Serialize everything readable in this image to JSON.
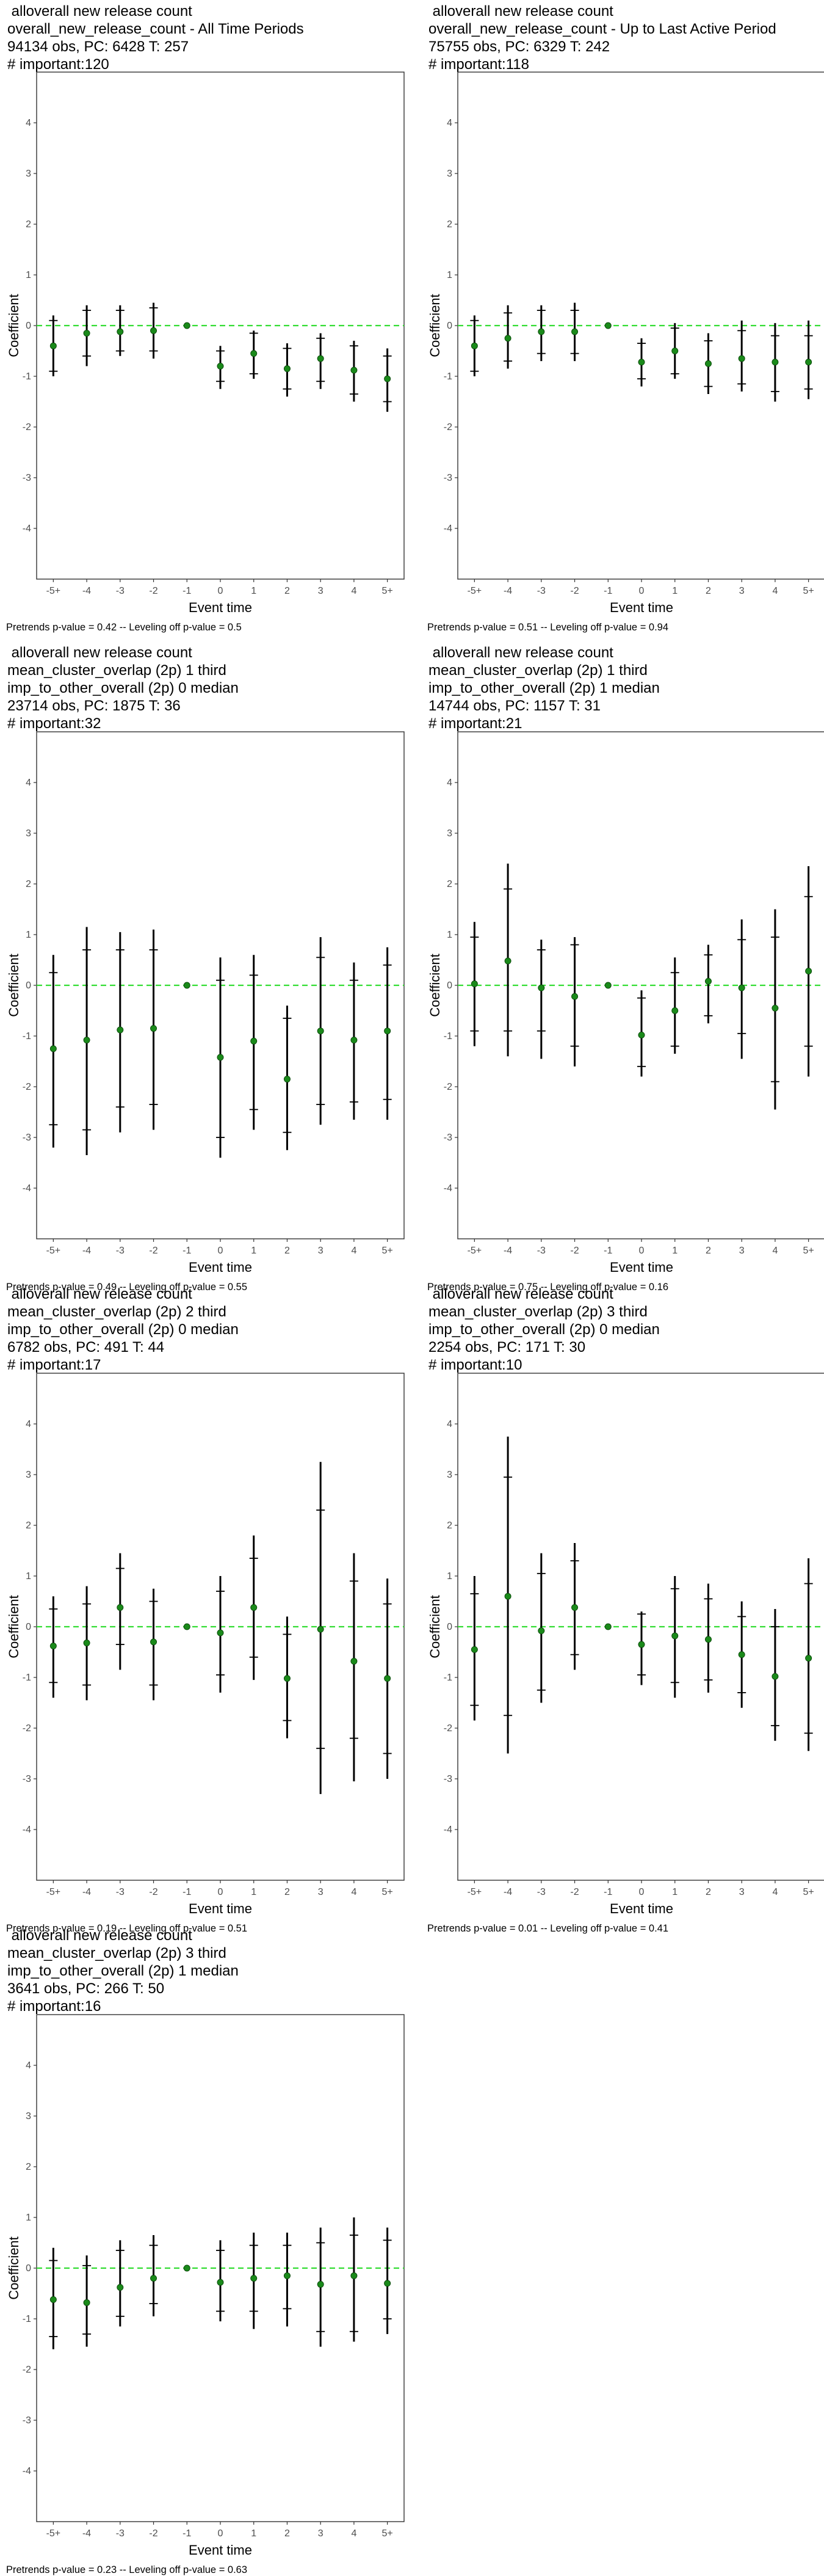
{
  "axes": {
    "xlabel": "Event time",
    "ylabel": "Coefficient",
    "x_ticks": [
      "-5+",
      "-4",
      "-3",
      "-2",
      "-1",
      "0",
      "1",
      "2",
      "3",
      "4",
      "5+"
    ],
    "y_ticks": [
      "-4",
      "-3",
      "-2",
      "-1",
      "0",
      "1",
      "2",
      "3",
      "4"
    ]
  },
  "colors": {
    "zero_line": "#33dd33",
    "point": "#1a8a1a",
    "interval": "#000000"
  },
  "chart_data": [
    {
      "type": "scatter",
      "title_lines": [
        " alloverall new release count",
        "overall_new_release_count - All Time Periods",
        "94134 obs, PC: 6428 T: 257",
        "# important:120"
      ],
      "note": "Pretrends p-value = 0.42 -- Leveling off p-value = 0.5",
      "ylim": [
        -5,
        5
      ],
      "x": [
        "-5+",
        "-4",
        "-3",
        "-2",
        "-1",
        "0",
        "1",
        "2",
        "3",
        "4",
        "5+"
      ],
      "y": [
        -0.4,
        -0.15,
        -0.12,
        -0.1,
        0,
        -0.8,
        -0.55,
        -0.85,
        -0.65,
        -0.88,
        -1.05
      ],
      "ci_inner": [
        [
          -0.9,
          0.1
        ],
        [
          -0.6,
          0.3
        ],
        [
          -0.5,
          0.3
        ],
        [
          -0.5,
          0.35
        ],
        [
          0,
          0
        ],
        [
          -1.1,
          -0.5
        ],
        [
          -0.95,
          -0.15
        ],
        [
          -1.25,
          -0.45
        ],
        [
          -1.1,
          -0.25
        ],
        [
          -1.35,
          -0.4
        ],
        [
          -1.5,
          -0.6
        ]
      ],
      "ci_outer": [
        [
          -1.0,
          0.2
        ],
        [
          -0.8,
          0.4
        ],
        [
          -0.6,
          0.4
        ],
        [
          -0.65,
          0.45
        ],
        [
          0,
          0
        ],
        [
          -1.25,
          -0.4
        ],
        [
          -1.05,
          -0.1
        ],
        [
          -1.4,
          -0.35
        ],
        [
          -1.25,
          -0.15
        ],
        [
          -1.5,
          -0.3
        ],
        [
          -1.7,
          -0.45
        ]
      ]
    },
    {
      "type": "scatter",
      "title_lines": [
        " alloverall new release count",
        "overall_new_release_count - Up to Last Active Period",
        "75755 obs, PC: 6329 T: 242",
        "# important:118"
      ],
      "note": "Pretrends p-value = 0.51 -- Leveling off p-value = 0.94",
      "ylim": [
        -5,
        5
      ],
      "x": [
        "-5+",
        "-4",
        "-3",
        "-2",
        "-1",
        "0",
        "1",
        "2",
        "3",
        "4",
        "5+"
      ],
      "y": [
        -0.4,
        -0.25,
        -0.12,
        -0.12,
        0,
        -0.72,
        -0.5,
        -0.75,
        -0.65,
        -0.72,
        -0.72
      ],
      "ci_inner": [
        [
          -0.9,
          0.1
        ],
        [
          -0.7,
          0.25
        ],
        [
          -0.55,
          0.3
        ],
        [
          -0.55,
          0.3
        ],
        [
          0,
          0
        ],
        [
          -1.05,
          -0.35
        ],
        [
          -0.95,
          -0.05
        ],
        [
          -1.2,
          -0.3
        ],
        [
          -1.15,
          -0.1
        ],
        [
          -1.3,
          -0.2
        ],
        [
          -1.25,
          -0.2
        ]
      ],
      "ci_outer": [
        [
          -1.0,
          0.2
        ],
        [
          -0.85,
          0.4
        ],
        [
          -0.7,
          0.4
        ],
        [
          -0.7,
          0.45
        ],
        [
          0,
          0
        ],
        [
          -1.2,
          -0.25
        ],
        [
          -1.05,
          0.05
        ],
        [
          -1.35,
          -0.15
        ],
        [
          -1.3,
          0.1
        ],
        [
          -1.5,
          0.05
        ],
        [
          -1.45,
          0.1
        ]
      ]
    },
    {
      "type": "scatter",
      "title_lines": [
        " alloverall new release count",
        "mean_cluster_overlap (2p) 1 third",
        "imp_to_other_overall (2p) 0 median",
        "23714 obs, PC: 1875 T: 36",
        "# important:32"
      ],
      "note": "Pretrends p-value = 0.49 -- Leveling off p-value = 0.55",
      "ylim": [
        -5,
        5
      ],
      "x": [
        "-5+",
        "-4",
        "-3",
        "-2",
        "-1",
        "0",
        "1",
        "2",
        "3",
        "4",
        "5+"
      ],
      "y": [
        -1.25,
        -1.08,
        -0.88,
        -0.85,
        0,
        -1.42,
        -1.1,
        -1.85,
        -0.9,
        -1.08,
        -0.9
      ],
      "ci_inner": [
        [
          -2.75,
          0.25
        ],
        [
          -2.85,
          0.7
        ],
        [
          -2.4,
          0.7
        ],
        [
          -2.35,
          0.7
        ],
        [
          0,
          0
        ],
        [
          -3.0,
          0.1
        ],
        [
          -2.45,
          0.2
        ],
        [
          -2.9,
          -0.65
        ],
        [
          -2.35,
          0.55
        ],
        [
          -2.3,
          0.1
        ],
        [
          -2.25,
          0.4
        ]
      ],
      "ci_outer": [
        [
          -3.2,
          0.6
        ],
        [
          -3.35,
          1.15
        ],
        [
          -2.9,
          1.05
        ],
        [
          -2.85,
          1.1
        ],
        [
          0,
          0
        ],
        [
          -3.4,
          0.55
        ],
        [
          -2.85,
          0.6
        ],
        [
          -3.25,
          -0.4
        ],
        [
          -2.75,
          0.95
        ],
        [
          -2.65,
          0.45
        ],
        [
          -2.65,
          0.75
        ]
      ]
    },
    {
      "type": "scatter",
      "title_lines": [
        " alloverall new release count",
        "mean_cluster_overlap (2p) 1 third",
        "imp_to_other_overall (2p) 1 median",
        "14744 obs, PC: 1157 T: 31",
        "# important:21"
      ],
      "note": "Pretrends p-value = 0.75 -- Leveling off p-value = 0.16",
      "ylim": [
        -5,
        5
      ],
      "x": [
        "-5+",
        "-4",
        "-3",
        "-2",
        "-1",
        "0",
        "1",
        "2",
        "3",
        "4",
        "5+"
      ],
      "y": [
        0.03,
        0.48,
        -0.05,
        -0.22,
        0,
        -0.98,
        -0.5,
        0.08,
        -0.05,
        -0.45,
        0.28
      ],
      "ci_inner": [
        [
          -0.9,
          0.95
        ],
        [
          -0.9,
          1.9
        ],
        [
          -0.9,
          0.7
        ],
        [
          -1.2,
          0.8
        ],
        [
          0,
          0
        ],
        [
          -1.6,
          -0.25
        ],
        [
          -1.2,
          0.25
        ],
        [
          -0.6,
          0.6
        ],
        [
          -0.95,
          0.9
        ],
        [
          -1.9,
          0.95
        ],
        [
          -1.2,
          1.75
        ]
      ],
      "ci_outer": [
        [
          -1.2,
          1.25
        ],
        [
          -1.4,
          2.4
        ],
        [
          -1.45,
          0.9
        ],
        [
          -1.6,
          0.95
        ],
        [
          0,
          0
        ],
        [
          -1.8,
          -0.1
        ],
        [
          -1.35,
          0.55
        ],
        [
          -0.75,
          0.8
        ],
        [
          -1.45,
          1.3
        ],
        [
          -2.45,
          1.5
        ],
        [
          -1.8,
          2.35
        ]
      ]
    },
    {
      "type": "scatter",
      "title_lines": [
        " alloverall new release count",
        "mean_cluster_overlap (2p) 2 third",
        "imp_to_other_overall (2p) 0 median",
        "6782 obs, PC: 491 T: 44",
        "# important:17"
      ],
      "note": "Pretrends p-value = 0.19 -- Leveling off p-value = 0.51",
      "ylim": [
        -5,
        5
      ],
      "x": [
        "-5+",
        "-4",
        "-3",
        "-2",
        "-1",
        "0",
        "1",
        "2",
        "3",
        "4",
        "5+"
      ],
      "y": [
        -0.38,
        -0.32,
        0.38,
        -0.3,
        0,
        -0.12,
        0.38,
        -1.02,
        -0.05,
        -0.68,
        -1.02
      ],
      "ci_inner": [
        [
          -1.1,
          0.35
        ],
        [
          -1.15,
          0.45
        ],
        [
          -0.35,
          1.15
        ],
        [
          -1.15,
          0.5
        ],
        [
          0,
          0
        ],
        [
          -0.95,
          0.7
        ],
        [
          -0.6,
          1.35
        ],
        [
          -1.85,
          -0.15
        ],
        [
          -2.4,
          2.3
        ],
        [
          -2.2,
          0.9
        ],
        [
          -2.5,
          0.45
        ]
      ],
      "ci_outer": [
        [
          -1.4,
          0.6
        ],
        [
          -1.45,
          0.8
        ],
        [
          -0.85,
          1.45
        ],
        [
          -1.45,
          0.75
        ],
        [
          0,
          0
        ],
        [
          -1.3,
          1.0
        ],
        [
          -1.05,
          1.8
        ],
        [
          -2.2,
          0.2
        ],
        [
          -3.3,
          3.25
        ],
        [
          -3.05,
          1.45
        ],
        [
          -3.0,
          0.95
        ]
      ]
    },
    {
      "type": "scatter",
      "title_lines": [
        " alloverall new release count",
        "mean_cluster_overlap (2p) 3 third",
        "imp_to_other_overall (2p) 0 median",
        "2254 obs, PC: 171 T: 30",
        "# important:10"
      ],
      "note": "Pretrends p-value = 0.01 -- Leveling off p-value = 0.41",
      "ylim": [
        -5,
        5
      ],
      "x": [
        "-5+",
        "-4",
        "-3",
        "-2",
        "-1",
        "0",
        "1",
        "2",
        "3",
        "4",
        "5+"
      ],
      "y": [
        -0.45,
        0.6,
        -0.08,
        0.38,
        0,
        -0.35,
        -0.18,
        -0.25,
        -0.55,
        -0.98,
        -0.62
      ],
      "ci_inner": [
        [
          -1.55,
          0.65
        ],
        [
          -1.75,
          2.95
        ],
        [
          -1.25,
          1.05
        ],
        [
          -0.55,
          1.3
        ],
        [
          0,
          0
        ],
        [
          -0.95,
          0.25
        ],
        [
          -1.1,
          0.75
        ],
        [
          -1.05,
          0.55
        ],
        [
          -1.3,
          0.2
        ],
        [
          -1.95,
          0.0
        ],
        [
          -2.1,
          0.85
        ]
      ],
      "ci_outer": [
        [
          -1.85,
          1.0
        ],
        [
          -2.5,
          3.75
        ],
        [
          -1.5,
          1.45
        ],
        [
          -0.85,
          1.65
        ],
        [
          0,
          0
        ],
        [
          -1.15,
          0.3
        ],
        [
          -1.4,
          1.0
        ],
        [
          -1.3,
          0.85
        ],
        [
          -1.6,
          0.5
        ],
        [
          -2.25,
          0.35
        ],
        [
          -2.45,
          1.35
        ]
      ]
    },
    {
      "type": "scatter",
      "title_lines": [
        " alloverall new release count",
        "mean_cluster_overlap (2p) 3 third",
        "imp_to_other_overall (2p) 1 median",
        "3641 obs, PC: 266 T: 50",
        "# important:16"
      ],
      "note": "Pretrends p-value = 0.23 -- Leveling off p-value = 0.63",
      "ylim": [
        -5,
        5
      ],
      "x": [
        "-5+",
        "-4",
        "-3",
        "-2",
        "-1",
        "0",
        "1",
        "2",
        "3",
        "4",
        "5+"
      ],
      "y": [
        -0.62,
        -0.68,
        -0.38,
        -0.2,
        0,
        -0.28,
        -0.2,
        -0.15,
        -0.32,
        -0.15,
        -0.3
      ],
      "ci_inner": [
        [
          -1.35,
          0.15
        ],
        [
          -1.3,
          0.05
        ],
        [
          -0.95,
          0.35
        ],
        [
          -0.7,
          0.45
        ],
        [
          0,
          0
        ],
        [
          -0.85,
          0.35
        ],
        [
          -0.85,
          0.45
        ],
        [
          -0.8,
          0.45
        ],
        [
          -1.25,
          0.5
        ],
        [
          -1.25,
          0.65
        ],
        [
          -1.0,
          0.55
        ]
      ],
      "ci_outer": [
        [
          -1.6,
          0.4
        ],
        [
          -1.55,
          0.25
        ],
        [
          -1.15,
          0.55
        ],
        [
          -0.95,
          0.65
        ],
        [
          0,
          0
        ],
        [
          -1.05,
          0.55
        ],
        [
          -1.2,
          0.7
        ],
        [
          -1.15,
          0.7
        ],
        [
          -1.55,
          0.8
        ],
        [
          -1.45,
          1.0
        ],
        [
          -1.3,
          0.8
        ]
      ]
    }
  ]
}
